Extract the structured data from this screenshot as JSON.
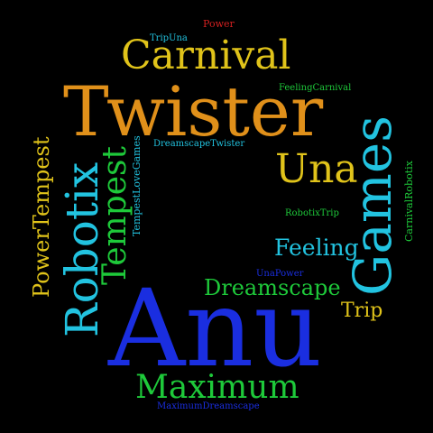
{
  "words": {
    "anu": "Anu",
    "twister": "Twister",
    "robotix": "Robotix",
    "games": "Games",
    "carnival": "Carnival",
    "maximum": "Maximum",
    "una": "Una",
    "tempest": "Tempest",
    "dreamscape": "Dreamscape",
    "feeling": "Feeling",
    "power_tempest": "PowerTempest",
    "trip": "Trip",
    "power": "Power",
    "trip_una": "TripUna",
    "feeling_carnival": "FeelingCarnival",
    "dreamscape_twister": "DreamscapeTwister",
    "tempest_love_games": "TempestLoveGames",
    "robotix_trip": "RobotixTrip",
    "carnival_robotix": "CarnivalRobotix",
    "una_power": "UnaPower",
    "maximum_dreamscape": "MaximumDreamscape"
  },
  "colors": {
    "background": "#000000",
    "blue": "#1a2ee0",
    "orange": "#e0901a",
    "cyan": "#22c3e0",
    "yellow": "#e0c31a",
    "green": "#1ec93a",
    "red": "#d42020",
    "teal": "#22d0c8"
  }
}
